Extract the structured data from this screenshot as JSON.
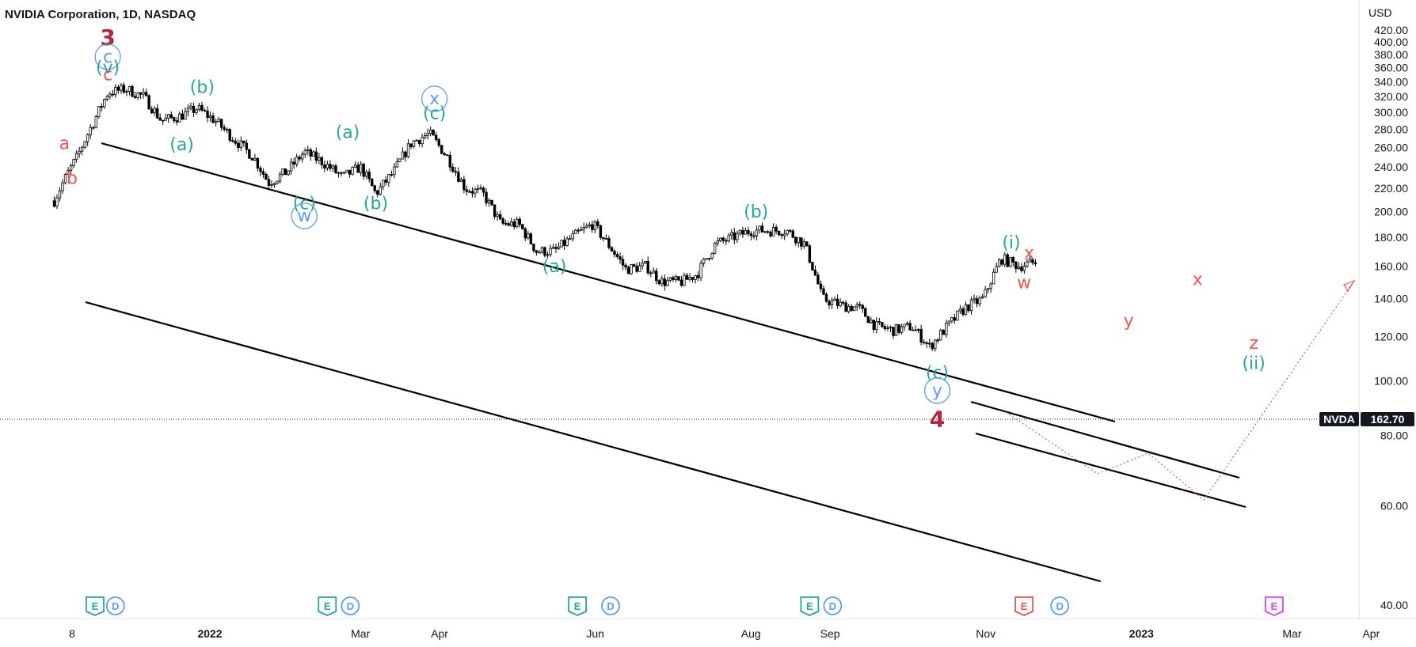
{
  "header": {
    "title": "NVIDIA Corporation, 1D, NASDAQ"
  },
  "axis": {
    "currency": "USD",
    "y_ticks": [
      "420.00",
      "400.00",
      "380.00",
      "360.00",
      "340.00",
      "320.00",
      "300.00",
      "280.00",
      "260.00",
      "240.00",
      "220.00",
      "200.00",
      "180.00",
      "160.00",
      "140.00",
      "120.00",
      "100.00",
      "80.00",
      "60.00",
      "40.00"
    ],
    "x_ticks": [
      "8",
      "2022",
      "Mar",
      "Apr",
      "Jun",
      "Aug",
      "Sep",
      "Nov",
      "2023",
      "Mar",
      "Apr"
    ]
  },
  "last_price": {
    "symbol": "NVDA",
    "value": "162.70"
  },
  "colors": {
    "teal": "#26a69a",
    "blue": "#5b9cf6",
    "red": "#ef5350",
    "darkred": "#b2283a",
    "magenta": "#e040fb",
    "pink_projection": "#ef5350"
  },
  "chart_data": {
    "type": "candlestick",
    "title": "NVIDIA Corporation, 1D, NASDAQ",
    "ylabel": "USD",
    "ylim": [
      30,
      430
    ],
    "log_scale": true,
    "grid": false,
    "x_period": [
      "2021-11",
      "2023-04"
    ],
    "last_close": 162.7,
    "closes_by_date": [
      [
        "2021-11-01",
        209
      ],
      [
        "2021-11-05",
        228
      ],
      [
        "2021-11-10",
        250
      ],
      [
        "2021-11-17",
        292
      ],
      [
        "2021-11-22",
        325
      ],
      [
        "2021-11-29",
        330
      ],
      [
        "2021-12-06",
        320
      ],
      [
        "2021-12-13",
        290
      ],
      [
        "2021-12-20",
        295
      ],
      [
        "2021-12-27",
        305
      ],
      [
        "2022-01-03",
        290
      ],
      [
        "2022-01-10",
        270
      ],
      [
        "2022-01-18",
        250
      ],
      [
        "2022-01-24",
        225
      ],
      [
        "2022-01-31",
        235
      ],
      [
        "2022-02-07",
        255
      ],
      [
        "2022-02-14",
        245
      ],
      [
        "2022-02-22",
        230
      ],
      [
        "2022-03-01",
        240
      ],
      [
        "2022-03-07",
        215
      ],
      [
        "2022-03-14",
        235
      ],
      [
        "2022-03-21",
        265
      ],
      [
        "2022-03-28",
        275
      ],
      [
        "2022-04-04",
        250
      ],
      [
        "2022-04-11",
        220
      ],
      [
        "2022-04-18",
        215
      ],
      [
        "2022-04-25",
        190
      ],
      [
        "2022-05-02",
        190
      ],
      [
        "2022-05-09",
        170
      ],
      [
        "2022-05-16",
        170
      ],
      [
        "2022-05-23",
        180
      ],
      [
        "2022-05-31",
        190
      ],
      [
        "2022-06-06",
        175
      ],
      [
        "2022-06-13",
        158
      ],
      [
        "2022-06-21",
        160
      ],
      [
        "2022-06-27",
        150
      ],
      [
        "2022-07-05",
        150
      ],
      [
        "2022-07-11",
        155
      ],
      [
        "2022-07-18",
        175
      ],
      [
        "2022-07-25",
        180
      ],
      [
        "2022-08-01",
        185
      ],
      [
        "2022-08-08",
        185
      ],
      [
        "2022-08-15",
        185
      ],
      [
        "2022-08-22",
        175
      ],
      [
        "2022-08-29",
        140
      ],
      [
        "2022-09-06",
        136
      ],
      [
        "2022-09-12",
        135
      ],
      [
        "2022-09-19",
        125
      ],
      [
        "2022-09-26",
        123
      ],
      [
        "2022-10-03",
        125
      ],
      [
        "2022-10-10",
        115
      ],
      [
        "2022-10-17",
        125
      ],
      [
        "2022-10-24",
        135
      ],
      [
        "2022-10-31",
        140
      ],
      [
        "2022-11-07",
        165
      ],
      [
        "2022-11-14",
        160
      ],
      [
        "2022-11-21",
        162.7
      ]
    ],
    "wave_labels": [
      {
        "text": "3",
        "date": "2021-11-22",
        "price": 395,
        "color": "darkred"
      },
      {
        "text": "c",
        "date": "2021-11-22",
        "price": 368,
        "color": "blue",
        "circled": true
      },
      {
        "text": "(v)",
        "date": "2021-11-22",
        "price": 352,
        "color": "teal"
      },
      {
        "text": "c",
        "date": "2021-11-22",
        "price": 342,
        "color": "red"
      },
      {
        "text": "a",
        "date": "2021-11-05",
        "price": 258,
        "color": "red"
      },
      {
        "text": "b",
        "date": "2021-11-08",
        "price": 224,
        "color": "red"
      },
      {
        "text": "(b)",
        "date": "2021-12-29",
        "price": 325,
        "color": "teal"
      },
      {
        "text": "(a)",
        "date": "2021-12-21",
        "price": 257,
        "color": "teal"
      },
      {
        "text": "(c)",
        "date": "2022-02-07",
        "price": 202,
        "color": "teal"
      },
      {
        "text": "w",
        "date": "2022-02-07",
        "price": 192,
        "color": "blue",
        "circled": true
      },
      {
        "text": "(a)",
        "date": "2022-02-24",
        "price": 270,
        "color": "teal"
      },
      {
        "text": "(b)",
        "date": "2022-03-07",
        "price": 202,
        "color": "teal"
      },
      {
        "text": "x",
        "date": "2022-03-30",
        "price": 310,
        "color": "blue",
        "circled": true
      },
      {
        "text": "(c)",
        "date": "2022-03-30",
        "price": 292,
        "color": "teal"
      },
      {
        "text": "(a)",
        "date": "2022-05-16",
        "price": 156,
        "color": "teal"
      },
      {
        "text": "(b)",
        "date": "2022-08-03",
        "price": 195,
        "color": "teal"
      },
      {
        "text": "(c)",
        "date": "2022-10-13",
        "price": 101,
        "color": "teal"
      },
      {
        "text": "y",
        "date": "2022-10-13",
        "price": 94,
        "color": "blue",
        "circled": true
      },
      {
        "text": "4",
        "date": "2022-10-13",
        "price": 83,
        "color": "darkred"
      },
      {
        "text": "(i)",
        "date": "2022-11-11",
        "price": 172,
        "color": "teal"
      },
      {
        "text": "x",
        "date": "2022-11-18",
        "price": 165,
        "color": "red"
      },
      {
        "text": "w",
        "date": "2022-11-16",
        "price": 146,
        "color": "red"
      },
      {
        "text": "y",
        "date": "2022-12-27",
        "price": 125,
        "color": "red"
      },
      {
        "text": "x",
        "date": "2023-01-23",
        "price": 148,
        "color": "red"
      },
      {
        "text": "z",
        "date": "2023-02-14",
        "price": 114,
        "color": "red"
      },
      {
        "text": "(ii)",
        "date": "2023-02-14",
        "price": 105,
        "color": "teal"
      }
    ],
    "event_markers": [
      {
        "date": "2021-11-17",
        "type": "E",
        "color": "teal"
      },
      {
        "date": "2021-11-25",
        "type": "D",
        "color": "blue"
      },
      {
        "date": "2022-02-16",
        "type": "E",
        "color": "teal"
      },
      {
        "date": "2022-02-25",
        "type": "D",
        "color": "blue"
      },
      {
        "date": "2022-05-25",
        "type": "E",
        "color": "teal"
      },
      {
        "date": "2022-06-07",
        "type": "D",
        "color": "blue"
      },
      {
        "date": "2022-08-24",
        "type": "E",
        "color": "teal"
      },
      {
        "date": "2022-09-02",
        "type": "D",
        "color": "blue"
      },
      {
        "date": "2022-11-16",
        "type": "E",
        "color": "red"
      },
      {
        "date": "2022-11-30",
        "type": "D",
        "color": "blue"
      },
      {
        "date": "2023-02-22",
        "type": "E",
        "color": "magenta"
      }
    ]
  }
}
